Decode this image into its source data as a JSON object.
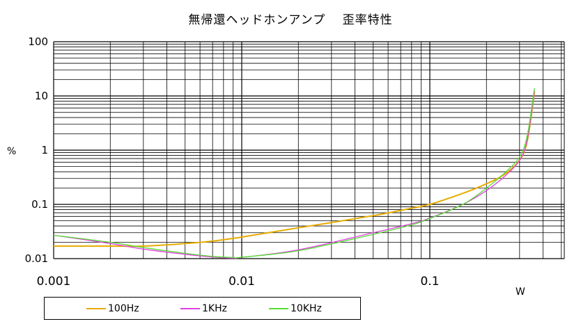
{
  "chart_data": {
    "type": "line",
    "title": "無帰還ヘッドホンアンプ　 歪率特性",
    "xlabel": "W",
    "ylabel": "%",
    "xscale": "log",
    "yscale": "log",
    "xlim": [
      0.001,
      0.5
    ],
    "ylim": [
      0.01,
      100
    ],
    "grid": true,
    "legend": "bottom",
    "x_tick_labels": [
      "0.001",
      "0.01",
      "0.1"
    ],
    "y_tick_labels": [
      "100",
      "10",
      "1",
      "0.1",
      "0.01"
    ],
    "series": [
      {
        "name": "100Hz",
        "color": "#e6ac00",
        "points": [
          [
            0.001,
            0.017
          ],
          [
            0.002,
            0.017
          ],
          [
            0.003,
            0.017
          ],
          [
            0.005,
            0.019
          ],
          [
            0.007,
            0.021
          ],
          [
            0.01,
            0.025
          ],
          [
            0.02,
            0.037
          ],
          [
            0.05,
            0.062
          ],
          [
            0.08,
            0.085
          ],
          [
            0.1,
            0.1
          ],
          [
            0.15,
            0.16
          ],
          [
            0.2,
            0.24
          ],
          [
            0.25,
            0.36
          ],
          [
            0.3,
            0.65
          ],
          [
            0.33,
            1.5
          ],
          [
            0.36,
            12
          ]
        ]
      },
      {
        "name": "1KHz",
        "color": "#e040e0",
        "points": [
          [
            0.001,
            0.027
          ],
          [
            0.002,
            0.019
          ],
          [
            0.003,
            0.015
          ],
          [
            0.005,
            0.012
          ],
          [
            0.007,
            0.0107
          ],
          [
            0.009,
            0.0102
          ],
          [
            0.01,
            0.0105
          ],
          [
            0.02,
            0.0145
          ],
          [
            0.05,
            0.03
          ],
          [
            0.08,
            0.044
          ],
          [
            0.1,
            0.056
          ],
          [
            0.15,
            0.1
          ],
          [
            0.2,
            0.18
          ],
          [
            0.25,
            0.33
          ],
          [
            0.3,
            0.65
          ],
          [
            0.33,
            1.6
          ],
          [
            0.36,
            12.5
          ]
        ]
      },
      {
        "name": "10KHz",
        "color": "#55dd33",
        "points": [
          [
            0.001,
            0.027
          ],
          [
            0.002,
            0.02
          ],
          [
            0.003,
            0.016
          ],
          [
            0.005,
            0.0125
          ],
          [
            0.007,
            0.011
          ],
          [
            0.009,
            0.0105
          ],
          [
            0.01,
            0.0106
          ],
          [
            0.02,
            0.014
          ],
          [
            0.05,
            0.028
          ],
          [
            0.08,
            0.042
          ],
          [
            0.1,
            0.055
          ],
          [
            0.15,
            0.1
          ],
          [
            0.2,
            0.2
          ],
          [
            0.25,
            0.38
          ],
          [
            0.3,
            0.75
          ],
          [
            0.33,
            1.9
          ],
          [
            0.36,
            14
          ]
        ]
      }
    ]
  }
}
